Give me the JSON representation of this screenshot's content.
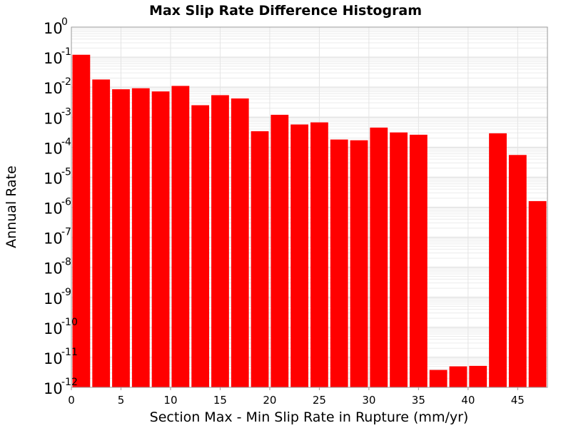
{
  "chart_data": {
    "type": "bar",
    "title": "Max Slip Rate Difference Histogram",
    "xlabel": "Section Max - Min Slip Rate in Rupture (mm/yr)",
    "ylabel": "Annual Rate",
    "xlim": [
      0,
      48
    ],
    "ylim": [
      1e-12,
      1
    ],
    "y_scale": "log",
    "bar_width": 2,
    "x_ticks": [
      0,
      5,
      10,
      15,
      20,
      25,
      30,
      35,
      40,
      45
    ],
    "y_ticks": [
      {
        "base": "10",
        "exp": "0"
      },
      {
        "base": "10",
        "exp": "-1"
      },
      {
        "base": "10",
        "exp": "-2"
      },
      {
        "base": "10",
        "exp": "-3"
      },
      {
        "base": "10",
        "exp": "-4"
      },
      {
        "base": "10",
        "exp": "-5"
      },
      {
        "base": "10",
        "exp": "-6"
      },
      {
        "base": "10",
        "exp": "-7"
      },
      {
        "base": "10",
        "exp": "-8"
      },
      {
        "base": "10",
        "exp": "-9"
      },
      {
        "base": "10",
        "exp": "-10"
      },
      {
        "base": "10",
        "exp": "-11"
      },
      {
        "base": "10",
        "exp": "-12"
      }
    ],
    "bar_color": "#ff0000",
    "grid": true,
    "x": [
      1,
      3,
      5,
      7,
      9,
      11,
      13,
      15,
      17,
      19,
      21,
      23,
      25,
      27,
      29,
      31,
      33,
      35,
      37,
      39,
      41,
      43,
      45,
      47
    ],
    "values": [
      0.12,
      0.018,
      0.0085,
      0.0092,
      0.0072,
      0.011,
      0.0025,
      0.0054,
      0.0042,
      0.00034,
      0.0012,
      0.00057,
      0.00067,
      0.00018,
      0.00017,
      0.00045,
      0.00031,
      0.00026,
      3.8e-12,
      5e-12,
      5.2e-12,
      0.00029,
      5.5e-05,
      1.6e-06
    ]
  }
}
